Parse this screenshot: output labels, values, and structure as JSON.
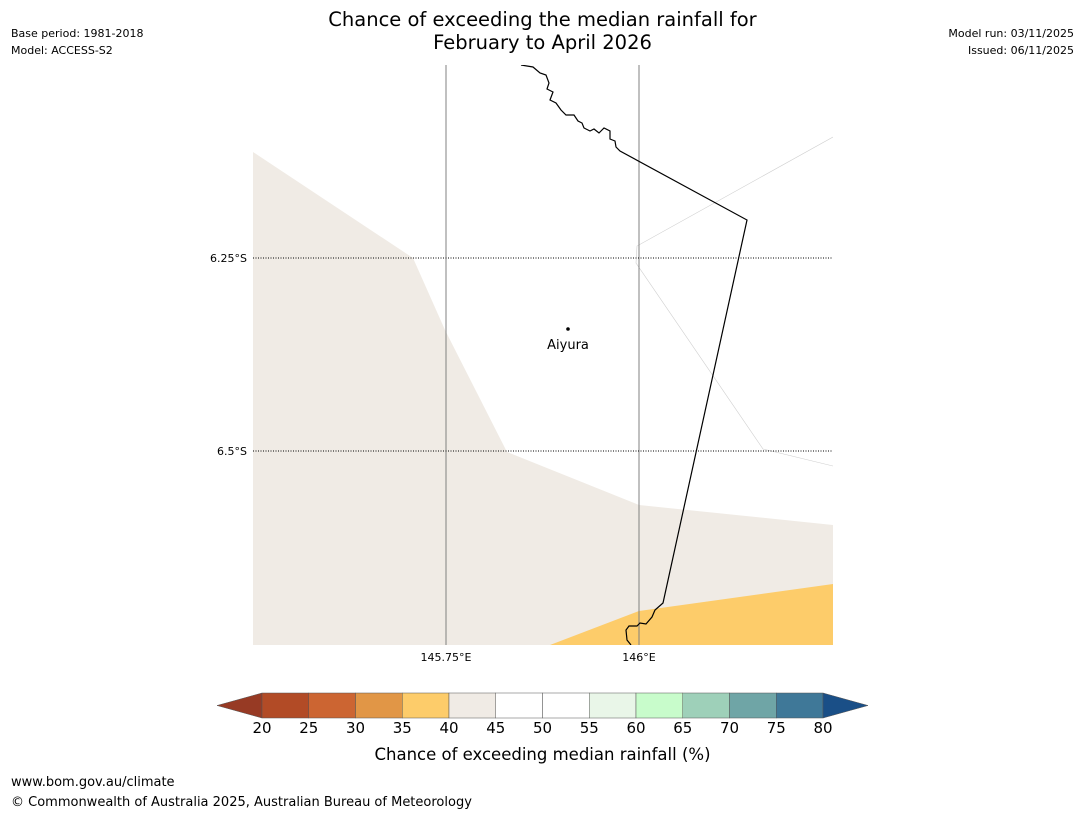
{
  "header": {
    "title_line1": "Chance of exceeding the median rainfall for",
    "title_line2": "February to April 2026",
    "base_period": "Base period: 1981-2018",
    "model": "Model: ACCESS-S2",
    "model_run": "Model run: 03/11/2025",
    "issued": "Issued: 06/11/2025"
  },
  "map": {
    "lat_ticks": [
      "6.25°S",
      "6.5°S"
    ],
    "lon_ticks": [
      "145.75°E",
      "146°E"
    ],
    "place": {
      "name": "Aiyura"
    },
    "colors": {
      "band_40_45": "#f0ebe5",
      "band_35_40": "#fdcc6a",
      "coastline": "#000000"
    }
  },
  "colorbar": {
    "title": "Chance of exceeding median rainfall (%)",
    "labels": [
      "20",
      "25",
      "30",
      "35",
      "40",
      "45",
      "50",
      "55",
      "60",
      "65",
      "70",
      "75",
      "80"
    ],
    "low_extend_color": "#973a24",
    "high_extend_color": "#1a4f87",
    "bins": [
      {
        "range": "20-25",
        "color": "#b24b26"
      },
      {
        "range": "25-30",
        "color": "#cc6532"
      },
      {
        "range": "30-35",
        "color": "#e19646"
      },
      {
        "range": "35-40",
        "color": "#fdcc6a"
      },
      {
        "range": "40-45",
        "color": "#f0ebe5"
      },
      {
        "range": "45-50",
        "color": "#ffffff"
      },
      {
        "range": "50-55",
        "color": "#ffffff"
      },
      {
        "range": "55-60",
        "color": "#e9f6e8"
      },
      {
        "range": "60-65",
        "color": "#c8fccb"
      },
      {
        "range": "65-70",
        "color": "#9ed0b9"
      },
      {
        "range": "70-75",
        "color": "#6fa5a6"
      },
      {
        "range": "75-80",
        "color": "#3f7898"
      }
    ]
  },
  "footer": {
    "url": "www.bom.gov.au/climate",
    "copyright": "© Commonwealth of Australia 2025, Australian Bureau of Meteorology"
  }
}
